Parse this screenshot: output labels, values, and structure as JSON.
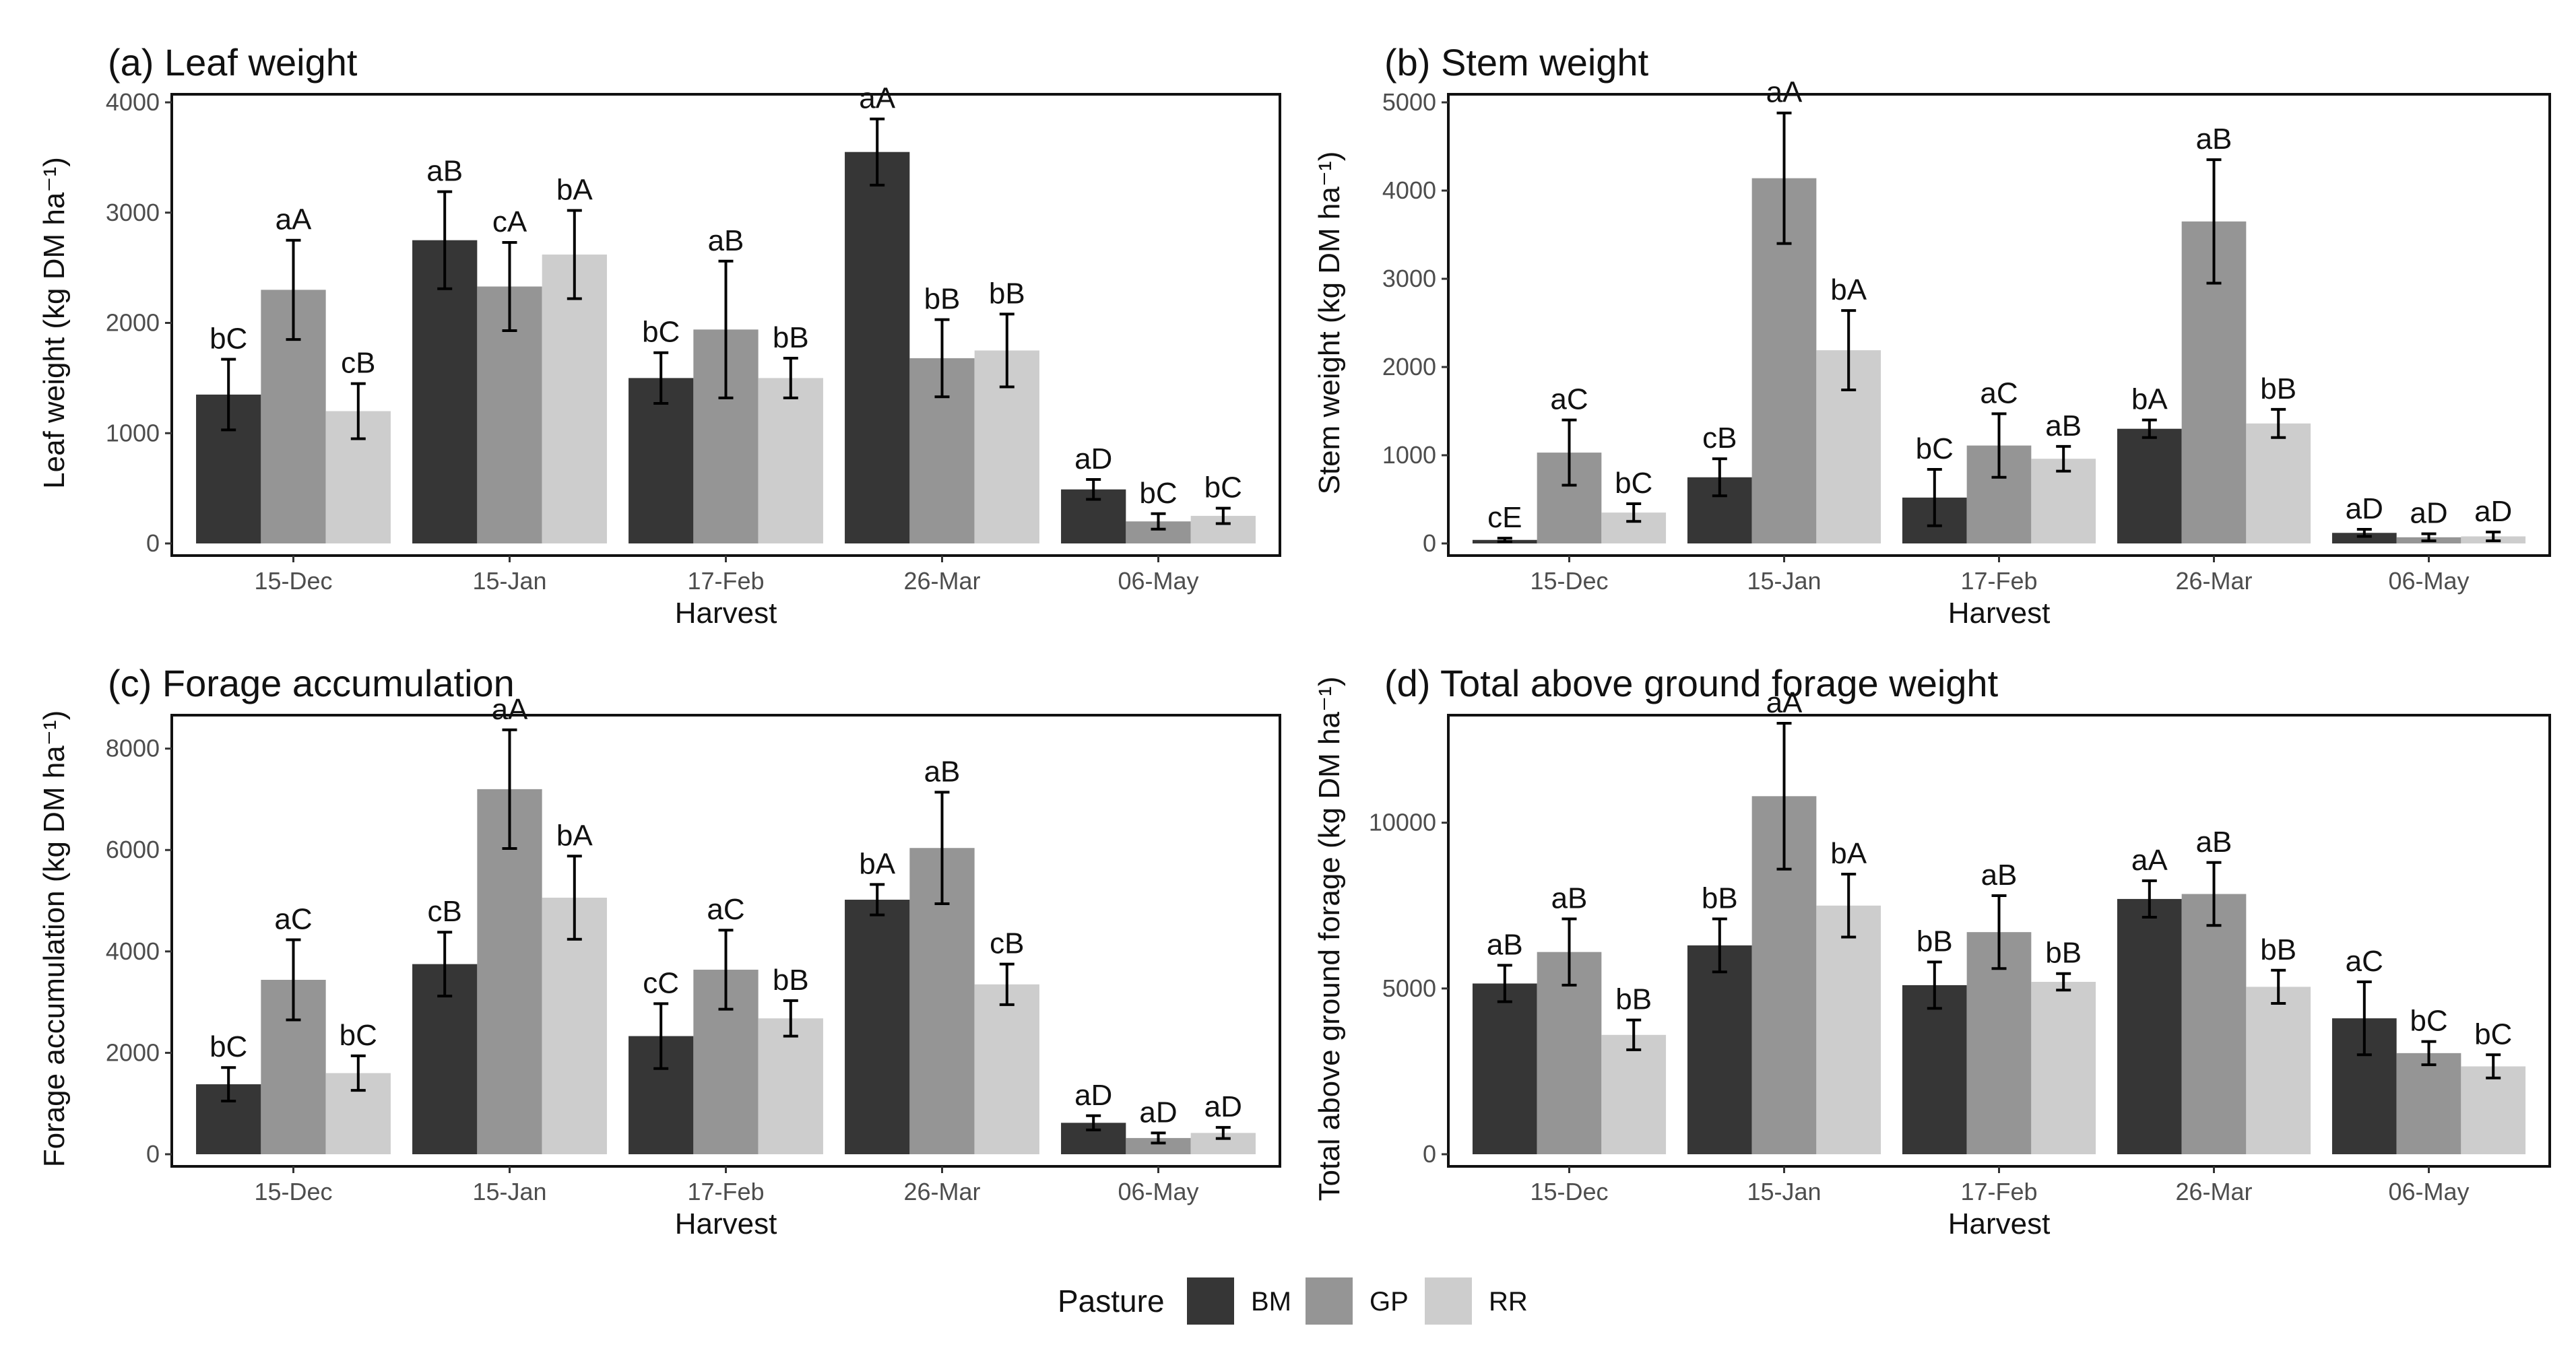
{
  "legend": {
    "title": "Pasture",
    "items": [
      {
        "name": "BM",
        "color": "#363636"
      },
      {
        "name": "GP",
        "color": "#959595"
      },
      {
        "name": "RR",
        "color": "#cdcdcd"
      }
    ]
  },
  "chart_data": [
    {
      "type": "bar",
      "panel_label": "(a) Leaf weight",
      "title": "Leaf weight",
      "xlabel": "Harvest",
      "ylabel": "Leaf weight (kg DM ha⁻¹)",
      "ylim": [
        0,
        4000
      ],
      "yticks": [
        0,
        1000,
        2000,
        3000,
        4000
      ],
      "categories": [
        "15-Dec",
        "15-Jan",
        "17-Feb",
        "26-Mar",
        "06-May"
      ],
      "series": [
        {
          "name": "BM",
          "values": [
            1350,
            2750,
            1500,
            3550,
            490
          ],
          "errors": [
            320,
            440,
            230,
            300,
            90
          ],
          "labels": [
            "bC",
            "aB",
            "bC",
            "aA",
            "aD"
          ]
        },
        {
          "name": "GP",
          "values": [
            2300,
            2330,
            1940,
            1680,
            200
          ],
          "errors": [
            450,
            400,
            620,
            350,
            70
          ],
          "labels": [
            "aA",
            "cA",
            "aB",
            "bB",
            "bC"
          ]
        },
        {
          "name": "RR",
          "values": [
            1200,
            2620,
            1500,
            1750,
            250
          ],
          "errors": [
            250,
            400,
            180,
            330,
            70
          ],
          "labels": [
            "cB",
            "bA",
            "bB",
            "bB",
            "bC"
          ]
        }
      ]
    },
    {
      "type": "bar",
      "panel_label": "(b) Stem weight",
      "title": "Stem weight",
      "xlabel": "Harvest",
      "ylabel": "Stem weight (kg DM ha⁻¹)",
      "ylim": [
        0,
        5000
      ],
      "yticks": [
        0,
        1000,
        2000,
        3000,
        4000,
        5000
      ],
      "categories": [
        "15-Dec",
        "15-Jan",
        "17-Feb",
        "26-Mar",
        "06-May"
      ],
      "series": [
        {
          "name": "BM",
          "values": [
            40,
            750,
            520,
            1300,
            120
          ],
          "errors": [
            20,
            210,
            320,
            100,
            40
          ],
          "labels": [
            "cE",
            "cB",
            "bC",
            "bA",
            "aD"
          ]
        },
        {
          "name": "GP",
          "values": [
            1030,
            4140,
            1110,
            3650,
            70
          ],
          "errors": [
            370,
            740,
            360,
            700,
            40
          ],
          "labels": [
            "aC",
            "aA",
            "aC",
            "aB",
            "aD"
          ]
        },
        {
          "name": "RR",
          "values": [
            350,
            2190,
            960,
            1360,
            80
          ],
          "errors": [
            100,
            450,
            140,
            160,
            50
          ],
          "labels": [
            "bC",
            "bA",
            "aB",
            "bB",
            "aD"
          ]
        }
      ]
    },
    {
      "type": "bar",
      "panel_label": "(c) Forage accumulation",
      "title": "Forage accumulation",
      "xlabel": "Harvest",
      "ylabel": "Forage accumulation (kg DM ha⁻¹)",
      "ylim": [
        0,
        8500
      ],
      "yticks": [
        0,
        2000,
        4000,
        6000,
        8000
      ],
      "categories": [
        "15-Dec",
        "15-Jan",
        "17-Feb",
        "26-Mar",
        "06-May"
      ],
      "series": [
        {
          "name": "BM",
          "values": [
            1380,
            3750,
            2330,
            5020,
            620
          ],
          "errors": [
            330,
            630,
            640,
            300,
            140
          ],
          "labels": [
            "bC",
            "cB",
            "cC",
            "bA",
            "aD"
          ]
        },
        {
          "name": "GP",
          "values": [
            3440,
            7200,
            3640,
            6040,
            320
          ],
          "errors": [
            790,
            1170,
            780,
            1100,
            100
          ],
          "labels": [
            "aC",
            "aA",
            "aC",
            "aB",
            "aD"
          ]
        },
        {
          "name": "RR",
          "values": [
            1600,
            5060,
            2680,
            3350,
            420
          ],
          "errors": [
            340,
            820,
            350,
            400,
            110
          ],
          "labels": [
            "bC",
            "bA",
            "bB",
            "cB",
            "aD"
          ]
        }
      ]
    },
    {
      "type": "bar",
      "panel_label": "(d) Total above ground forage weight",
      "title": "Total above ground forage weight",
      "xlabel": "Harvest",
      "ylabel": "Total above ground forage (kg DM ha⁻¹)",
      "ylim": [
        0,
        13000
      ],
      "yticks": [
        0,
        5000,
        10000
      ],
      "categories": [
        "15-Dec",
        "15-Jan",
        "17-Feb",
        "26-Mar",
        "06-May"
      ],
      "series": [
        {
          "name": "BM",
          "values": [
            5150,
            6300,
            5100,
            7700,
            4100
          ],
          "errors": [
            550,
            800,
            700,
            550,
            1100
          ],
          "labels": [
            "aB",
            "bB",
            "bB",
            "aA",
            "aC"
          ]
        },
        {
          "name": "GP",
          "values": [
            6100,
            10800,
            6700,
            7850,
            3050
          ],
          "errors": [
            1000,
            2200,
            1100,
            950,
            350
          ],
          "labels": [
            "aB",
            "aA",
            "aB",
            "aB",
            "bC"
          ]
        },
        {
          "name": "RR",
          "values": [
            3600,
            7500,
            5200,
            5050,
            2650
          ],
          "errors": [
            450,
            950,
            250,
            500,
            350
          ],
          "labels": [
            "bB",
            "bA",
            "bB",
            "bB",
            "bC"
          ]
        }
      ]
    }
  ]
}
